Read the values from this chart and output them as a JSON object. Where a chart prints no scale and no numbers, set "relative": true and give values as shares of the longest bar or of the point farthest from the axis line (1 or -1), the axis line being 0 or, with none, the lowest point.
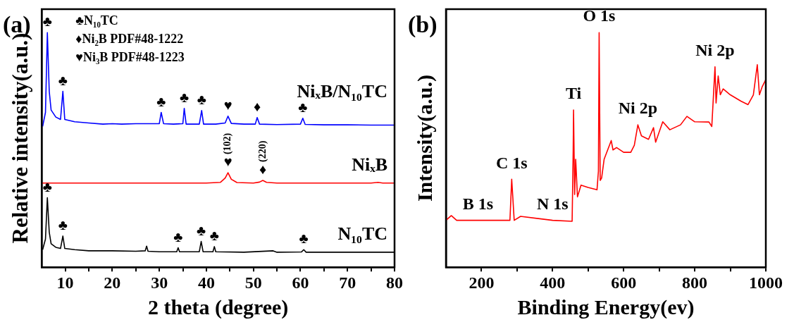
{
  "chart_data": [
    {
      "type": "line",
      "title": "(a)",
      "xlabel": "2 theta (degree)",
      "ylabel": "Relative intensity(a.u.)",
      "relative": true,
      "xlim": [
        5,
        80
      ],
      "xticks": [
        10,
        {
          "value": 15,
          "label": null
        },
        20,
        {
          "value": 25,
          "label": null
        },
        30,
        {
          "value": 35,
          "label": null
        },
        40,
        {
          "value": 45,
          "label": null
        },
        50,
        {
          "value": 55,
          "label": null
        },
        60,
        {
          "value": 65,
          "label": null
        },
        70,
        {
          "value": 75,
          "label": null
        },
        80
      ],
      "legend": false,
      "grid": false,
      "marker": "none",
      "line_style": "solid",
      "series": [
        {
          "name": "NiₓB/N₁₀TC",
          "color": "#0000ff",
          "x": [
            5.2,
            5.8,
            6.2,
            6.6,
            7,
            8,
            9,
            9.5,
            9.9,
            12,
            15,
            18,
            20,
            22,
            25,
            28,
            30,
            30.4,
            30.9,
            33,
            35,
            35.3,
            35.7,
            38.5,
            39,
            39.4,
            42,
            44,
            44.6,
            45.3,
            48,
            50.4,
            50.8,
            51.3,
            55,
            60,
            60.5,
            61,
            65,
            70,
            75,
            80
          ],
          "values": [
            0.6,
            0.66,
            1.0,
            0.75,
            0.67,
            0.64,
            0.63,
            0.75,
            0.63,
            0.62,
            0.615,
            0.61,
            0.612,
            0.61,
            0.612,
            0.612,
            0.612,
            0.66,
            0.612,
            0.61,
            0.612,
            0.677,
            0.61,
            0.61,
            0.668,
            0.61,
            0.61,
            0.615,
            0.644,
            0.613,
            0.61,
            0.61,
            0.638,
            0.61,
            0.608,
            0.61,
            0.635,
            0.609,
            0.607,
            0.607,
            0.606,
            0.606
          ]
        },
        {
          "name": "NiₓB",
          "color": "#ff0000",
          "x": [
            5,
            40,
            43,
            44,
            44.6,
            45.3,
            46.5,
            50,
            51.3,
            52,
            52.8,
            55,
            75,
            76.5,
            77.5,
            80
          ],
          "values": [
            0.359,
            0.359,
            0.362,
            0.38,
            0.403,
            0.375,
            0.361,
            0.359,
            0.363,
            0.37,
            0.362,
            0.359,
            0.359,
            0.362,
            0.359,
            0.359
          ]
        },
        {
          "name": "N₁₀TC",
          "color": "#000000",
          "x": [
            5.2,
            5.8,
            6.2,
            6.6,
            7,
            8,
            9,
            9.5,
            9.9,
            12,
            15,
            20,
            25,
            27,
            27.3,
            27.6,
            30,
            33.7,
            34,
            34.3,
            38.5,
            38.9,
            39.3,
            41.4,
            41.7,
            42,
            48,
            54.2,
            55,
            60.2,
            60.7,
            61.2,
            70,
            80
          ],
          "values": [
            0.075,
            0.12,
            0.296,
            0.15,
            0.1,
            0.085,
            0.08,
            0.133,
            0.08,
            0.075,
            0.07,
            0.07,
            0.068,
            0.07,
            0.09,
            0.068,
            0.066,
            0.066,
            0.083,
            0.066,
            0.066,
            0.11,
            0.066,
            0.066,
            0.088,
            0.066,
            0.064,
            0.07,
            0.064,
            0.065,
            0.075,
            0.064,
            0.064,
            0.064
          ]
        }
      ],
      "annotations": [
        "♣N₁₀TC",
        "♦Ni₂B PDF#48-1222",
        "♥Ni₃B PDF#48-1223",
        {
          "text": "♣",
          "x": 6.2,
          "y": 1.0
        },
        {
          "text": "♣",
          "x": 9.5,
          "y": 0.75
        },
        {
          "text": "♣",
          "x": 30.4,
          "y": 0.66
        },
        {
          "text": "♣",
          "x": 35.3,
          "y": 0.677
        },
        {
          "text": "♣",
          "x": 39,
          "y": 0.668
        },
        {
          "text": "♥",
          "x": 44.6,
          "y": 0.644
        },
        {
          "text": "♦",
          "x": 50.8,
          "y": 0.638
        },
        {
          "text": "♣",
          "x": 60.5,
          "y": 0.635
        },
        {
          "text": "♥",
          "x": 44.6,
          "y": 0.403
        },
        {
          "text": "(102)",
          "x": 44.6,
          "y": 0.403
        },
        {
          "text": "♦",
          "x": 52,
          "y": 0.37
        },
        {
          "text": "(220)",
          "x": 52,
          "y": 0.37
        },
        {
          "text": "♣",
          "x": 6.2,
          "y": 0.296
        },
        {
          "text": "♣",
          "x": 9.5,
          "y": 0.133
        },
        {
          "text": "♣",
          "x": 34,
          "y": 0.083
        },
        {
          "text": "♣",
          "x": 38.9,
          "y": 0.11
        },
        {
          "text": "♣",
          "x": 41.7,
          "y": 0.088
        },
        {
          "text": "♣",
          "x": 60.7,
          "y": 0.075
        }
      ]
    },
    {
      "type": "line",
      "title": "(b)",
      "xlabel": "Binding Energy(ev)",
      "ylabel": "Intensity(a.u.)",
      "relative": true,
      "xlim": [
        100,
        1000
      ],
      "xticks": [
        200,
        {
          "value": 300,
          "label": null
        },
        400,
        {
          "value": 500,
          "label": null
        },
        600,
        {
          "value": 700,
          "label": null
        },
        800,
        {
          "value": 900,
          "label": null
        },
        1000
      ],
      "legend": false,
      "grid": false,
      "marker": "none",
      "line_style": "solid",
      "series": [
        {
          "color": "#ff0000",
          "x": [
            100,
            115,
            130,
            200,
            280,
            285,
            292,
            310,
            400,
            455,
            458,
            459,
            462,
            465,
            470,
            480,
            500,
            525,
            529,
            531,
            534,
            538,
            545,
            565,
            570,
            580,
            600,
            620,
            630,
            640,
            650,
            670,
            684,
            690,
            710,
            730,
            760,
            778,
            800,
            840,
            848,
            857,
            860,
            866,
            872,
            880,
            900,
            930,
            950,
            965,
            976,
            982,
            990,
            1000
          ],
          "values": [
            0.2,
            0.22,
            0.2,
            0.2,
            0.2,
            0.375,
            0.2,
            0.217,
            0.2,
            0.196,
            0.5,
            0.67,
            0.31,
            0.46,
            0.3,
            0.35,
            0.34,
            0.33,
            0.41,
            1.0,
            0.37,
            0.38,
            0.46,
            0.54,
            0.5,
            0.51,
            0.49,
            0.49,
            0.52,
            0.607,
            0.56,
            0.545,
            0.595,
            0.533,
            0.62,
            0.586,
            0.607,
            0.643,
            0.62,
            0.619,
            0.6,
            0.854,
            0.7,
            0.815,
            0.735,
            0.76,
            0.735,
            0.708,
            0.693,
            0.735,
            0.863,
            0.735,
            0.77,
            0.8
          ]
        }
      ],
      "annotations": [
        {
          "text": "B 1s",
          "x": 190,
          "y": 0.2
        },
        {
          "text": "C 1s",
          "x": 285,
          "y": 0.375
        },
        {
          "text": "N 1s",
          "x": 400,
          "y": 0.2
        },
        {
          "text": "Ti",
          "x": 459,
          "y": 0.67
        },
        {
          "text": "O 1s",
          "x": 531,
          "y": 1.0
        },
        {
          "text": "Ni 2p",
          "x": 640,
          "y": 0.607
        },
        {
          "text": "Ni 2p",
          "x": 857,
          "y": 0.854
        }
      ]
    }
  ]
}
